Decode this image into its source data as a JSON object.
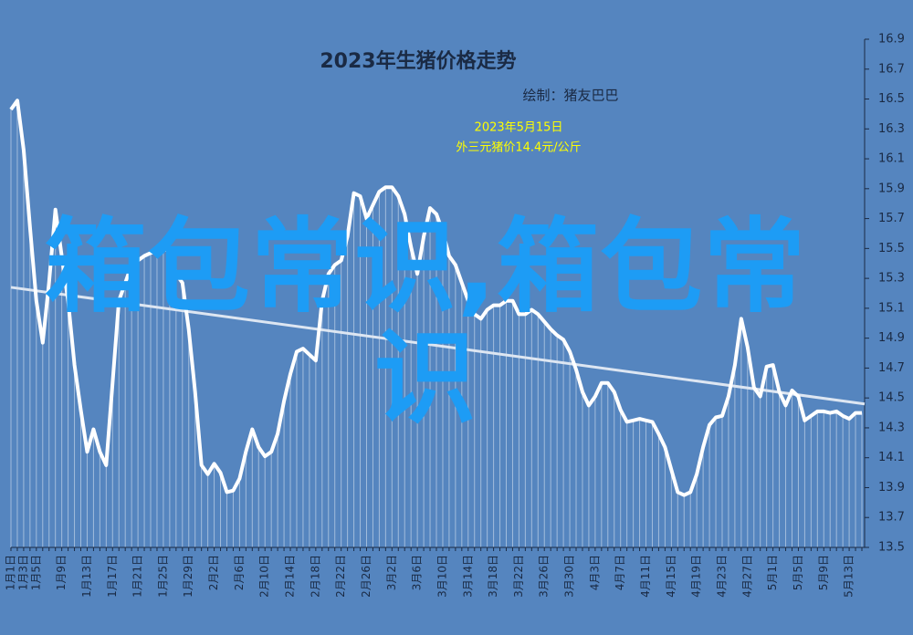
{
  "chart_data": {
    "type": "line",
    "title": "2023年生猪价格走势",
    "subtitle": "绘制：猪友巴巴",
    "annotation": [
      "2023年5月15日",
      "外三元猪价14.4元/公斤"
    ],
    "watermark": "箱包常识,箱包常识",
    "categories": [
      "1月1日",
      null,
      "1月3日",
      null,
      "1月5日",
      null,
      null,
      null,
      "1月9日",
      null,
      null,
      null,
      "1月13日",
      null,
      null,
      null,
      "1月17日",
      null,
      null,
      null,
      "1月21日",
      null,
      null,
      null,
      "1月25日",
      null,
      null,
      null,
      "1月29日",
      null,
      null,
      null,
      "2月2日",
      null,
      null,
      null,
      "2月6日",
      null,
      null,
      null,
      "2月10日",
      null,
      null,
      null,
      "2月14日",
      null,
      null,
      null,
      "2月18日",
      null,
      null,
      null,
      "2月22日",
      null,
      null,
      null,
      "2月26日",
      null,
      null,
      null,
      "3月2日",
      null,
      null,
      null,
      "3月6日",
      null,
      null,
      null,
      "3月10日",
      null,
      null,
      null,
      "3月14日",
      null,
      null,
      null,
      "3月18日",
      null,
      null,
      null,
      "3月22日",
      null,
      null,
      null,
      "3月26日",
      null,
      null,
      null,
      "3月30日",
      null,
      null,
      null,
      "4月3日",
      null,
      null,
      null,
      "4月7日",
      null,
      null,
      null,
      "4月11日",
      null,
      null,
      null,
      "4月15日",
      null,
      null,
      null,
      "4月19日",
      null,
      null,
      null,
      "4月23日",
      null,
      null,
      null,
      "4月27日",
      null,
      null,
      null,
      "5月1日",
      null,
      null,
      null,
      "5月5日",
      null,
      null,
      null,
      "5月9日",
      null,
      null,
      null,
      "5月13日",
      null,
      null
    ],
    "values": [
      16.43,
      16.49,
      16.16,
      15.64,
      15.15,
      14.87,
      15.27,
      15.76,
      15.45,
      15.15,
      14.72,
      14.42,
      14.14,
      14.29,
      14.14,
      14.05,
      14.6,
      15.15,
      15.27,
      15.39,
      15.42,
      15.45,
      15.47,
      15.48,
      15.5,
      15.48,
      15.33,
      15.27,
      14.96,
      14.54,
      14.05,
      13.99,
      14.06,
      14.0,
      13.87,
      13.88,
      13.96,
      14.14,
      14.29,
      14.17,
      14.11,
      14.14,
      14.26,
      14.48,
      14.66,
      14.81,
      14.83,
      14.79,
      14.75,
      15.15,
      15.33,
      15.39,
      15.42,
      15.58,
      15.87,
      15.85,
      15.7,
      15.79,
      15.88,
      15.91,
      15.91,
      15.85,
      15.73,
      15.51,
      15.33,
      15.58,
      15.77,
      15.73,
      15.61,
      15.45,
      15.39,
      15.27,
      15.15,
      15.06,
      15.03,
      15.09,
      15.12,
      15.12,
      15.15,
      15.15,
      15.06,
      15.06,
      15.09,
      15.06,
      15.01,
      14.96,
      14.92,
      14.89,
      14.81,
      14.69,
      14.54,
      14.45,
      14.51,
      14.6,
      14.6,
      14.54,
      14.42,
      14.34,
      14.35,
      14.36,
      14.35,
      14.34,
      14.26,
      14.17,
      14.02,
      13.87,
      13.85,
      13.87,
      13.99,
      14.17,
      14.32,
      14.37,
      14.38,
      14.51,
      14.72,
      15.03,
      14.84,
      14.57,
      14.51,
      14.71,
      14.72,
      14.54,
      14.45,
      14.55,
      14.51,
      14.35,
      14.38,
      14.41,
      14.41,
      14.4,
      14.41,
      14.38,
      14.36,
      14.4,
      14.4
    ],
    "trend": [
      15.24,
      14.46
    ],
    "color": "#ffffff",
    "ylim": [
      13.5,
      16.9
    ],
    "yticks": [
      13.5,
      13.7,
      13.9,
      14.1,
      14.3,
      14.5,
      14.7,
      14.9,
      15.1,
      15.3,
      15.5,
      15.7,
      15.9,
      16.1,
      16.3,
      16.5,
      16.7,
      16.9
    ]
  }
}
